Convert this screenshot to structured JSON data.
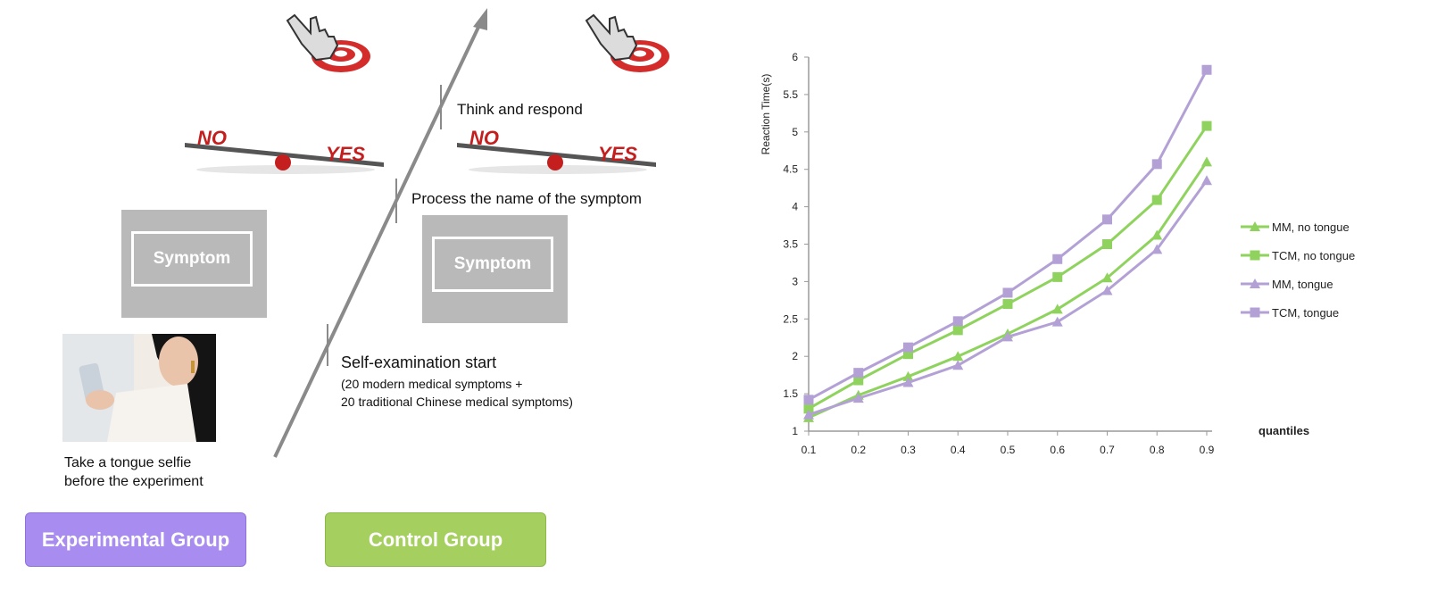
{
  "diagram": {
    "steps": {
      "think": "Think and respond",
      "process": "Process the name of the symptom",
      "self_exam": "Self-examination start",
      "self_exam_detail_1": "(20 modern medical symptoms +",
      "self_exam_detail_2": "20 traditional Chinese medical symptoms)",
      "selfie_1": "Take a tongue selfie",
      "selfie_2": "before the experiment"
    },
    "symptom_card_label": "Symptom",
    "scale_no": "NO",
    "scale_yes": "YES",
    "groups": {
      "experimental": "Experimental Group",
      "control": "Control Group"
    },
    "colors": {
      "experimental": "#a98cf0",
      "control": "#a5cf5e",
      "arrow": "#8a8a8a",
      "scale_text": "#c41e1e",
      "target": "#d42b2b"
    },
    "icons": [
      "hand-pointer-target-icon",
      "balance-scale-icon",
      "selfie-photo"
    ]
  },
  "chart_data": {
    "type": "line",
    "xlabel": "quantiles",
    "ylabel": "Reaction Time(s)",
    "x": [
      0.1,
      0.2,
      0.3,
      0.4,
      0.5,
      0.6,
      0.7,
      0.8,
      0.9
    ],
    "xticks": [
      "0.1",
      "0.2",
      "0.3",
      "0.4",
      "0.5",
      "0.6",
      "0.7",
      "0.8",
      "0.9"
    ],
    "yticks": [
      "1",
      "1.5",
      "2",
      "2.5",
      "3",
      "3.5",
      "4",
      "4.5",
      "5",
      "5.5",
      "6"
    ],
    "ylim": [
      1,
      6
    ],
    "xlim": [
      0.1,
      0.9
    ],
    "grid": false,
    "legend_position": "right",
    "series": [
      {
        "name": "MM, no tongue",
        "marker": "triangle",
        "color": "#8fd35e",
        "values": [
          1.18,
          1.48,
          1.73,
          2.0,
          2.3,
          2.63,
          3.05,
          3.62,
          4.6
        ]
      },
      {
        "name": "TCM, no tongue",
        "marker": "square",
        "color": "#8fd35e",
        "values": [
          1.3,
          1.68,
          2.03,
          2.35,
          2.7,
          3.06,
          3.5,
          4.09,
          5.08
        ]
      },
      {
        "name": "MM, tongue",
        "marker": "triangle",
        "color": "#b3a1d6",
        "values": [
          1.22,
          1.44,
          1.65,
          1.88,
          2.26,
          2.46,
          2.88,
          3.43,
          4.35
        ]
      },
      {
        "name": "TCM, tongue",
        "marker": "square",
        "color": "#b3a1d6",
        "values": [
          1.42,
          1.78,
          2.12,
          2.47,
          2.85,
          3.3,
          3.83,
          4.57,
          5.83
        ]
      }
    ]
  }
}
